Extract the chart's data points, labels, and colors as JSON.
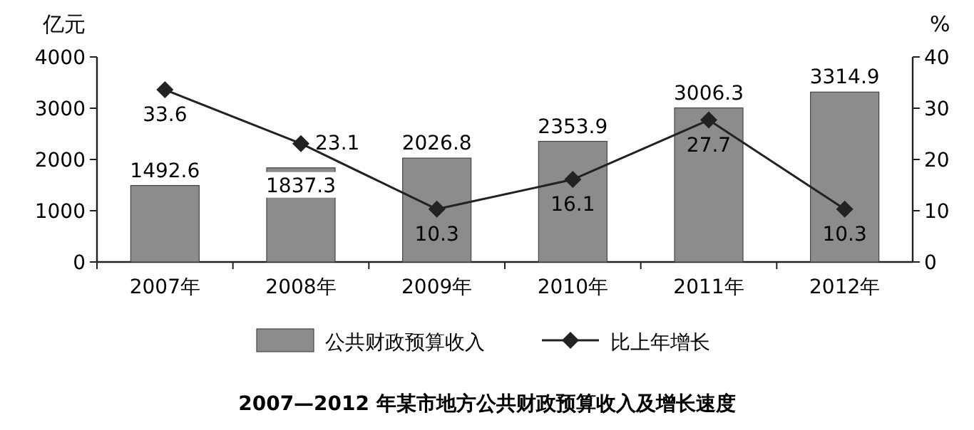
{
  "chart_data": {
    "type": "bar",
    "title": "2007—2012 年某市地方公共财政预算收入及增长速度",
    "ylabel": "亿元",
    "y2label": "%",
    "categories": [
      "2007年",
      "2008年",
      "2009年",
      "2010年",
      "2011年",
      "2012年"
    ],
    "series": [
      {
        "name": "公共财政预算收入",
        "color": "#8c8c8c",
        "values": [
          1492.6,
          1837.3,
          2026.8,
          2353.9,
          3006.3,
          3314.9
        ]
      },
      {
        "name": "比上年增长",
        "type": "line",
        "axis": "y2",
        "color": "#222222",
        "marker": "diamond",
        "values": [
          33.6,
          23.1,
          10.3,
          16.1,
          27.7,
          10.3
        ]
      }
    ],
    "ylim": [
      0,
      4000
    ],
    "yticks": [
      0,
      1000,
      2000,
      3000,
      4000
    ],
    "y2lim": [
      0,
      40
    ],
    "y2ticks": [
      0,
      10,
      20,
      30,
      40
    ],
    "data_labels": true,
    "legend": "bottom",
    "grid": false
  }
}
